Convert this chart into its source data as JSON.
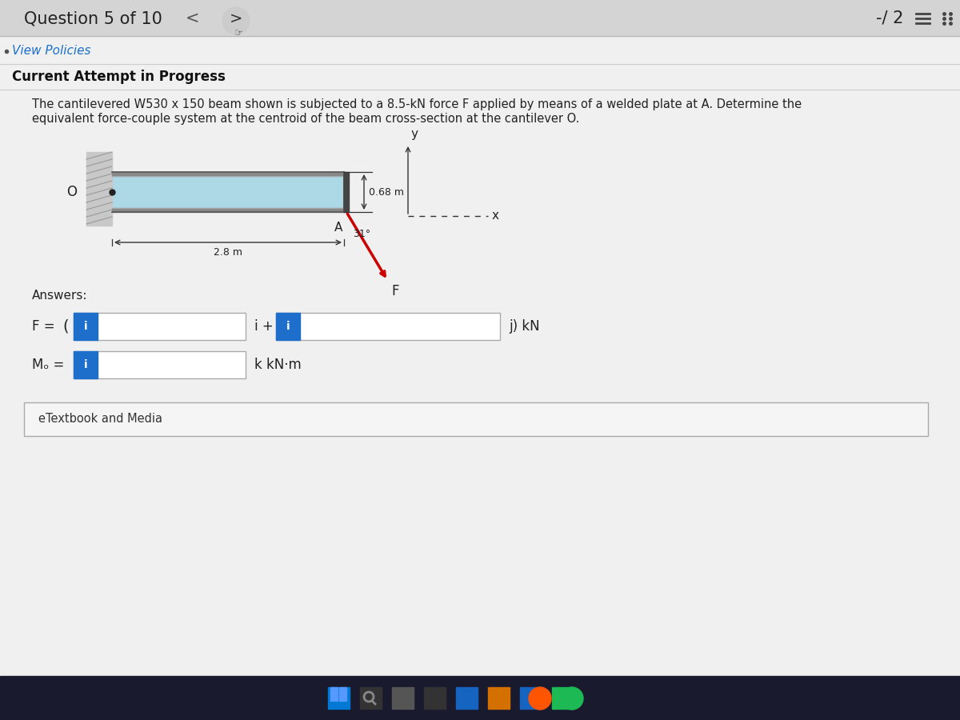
{
  "bg_color": "#e8e8e8",
  "top_bar_color": "#d4d4d4",
  "content_bg": "#efefef",
  "header_text": "Question 5 of 10",
  "score_text": "-/ 2",
  "view_policies_text": "View Policies",
  "current_attempt_text": "Current Attempt in Progress",
  "problem_line1": "The cantilevered W530 x 150 beam shown is subjected to a 8.5-kN force F applied by means of a welded plate at A. Determine the",
  "problem_line2": "equivalent force-couple system at the centroid of the beam cross-section at the cantilever O.",
  "answers_text": "Answers:",
  "etextbook_text": "eTextbook and Media",
  "beam_color": "#add8e6",
  "wall_color": "#b0b0b0",
  "force_arrow_color": "#cc0000",
  "blue_button_color": "#1e6fcc",
  "taskbar_color": "#1a1a2e",
  "taskbar_icon_colors": [
    "#0078d4",
    "#888888",
    "#555555",
    "#333333",
    "#1565c0",
    "#e67e00",
    "#1565c0",
    "#1db954"
  ]
}
